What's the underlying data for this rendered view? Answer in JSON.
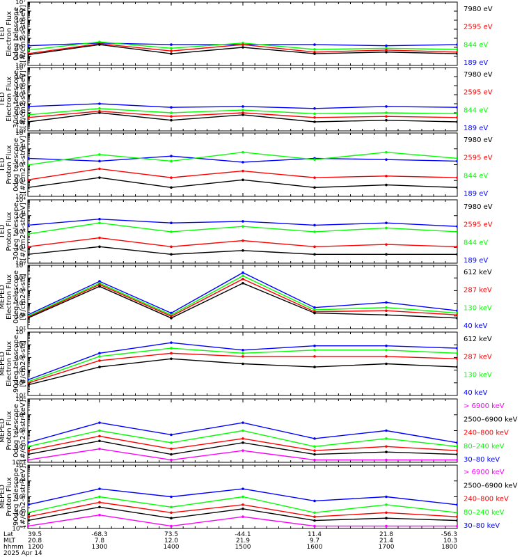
{
  "figure": {
    "date_label": "2025 Apr 14",
    "footer_rows": [
      {
        "label": "Lat",
        "values": [
          "39.5",
          "-68.3",
          "73.5",
          "-44.1",
          "11.4",
          "21.8",
          "-56.3"
        ]
      },
      {
        "label": "MLT",
        "values": [
          "20.8",
          "7.8",
          "12.0",
          "21.9",
          "9.7",
          "21.4",
          "10.3"
        ]
      },
      {
        "label": "hhmm",
        "values": [
          "1200",
          "1300",
          "1400",
          "1500",
          "1600",
          "1700",
          "1800"
        ]
      }
    ]
  },
  "colors": {
    "black": "#000000",
    "blue": "#0000ff",
    "red": "#ff0000",
    "green": "#00ff00",
    "magenta": "#ff00ff"
  },
  "chart_data": [
    {
      "type": "line",
      "ylabel": [
        "TED",
        "Electron Flux",
        "0deg telescope",
        "[#/cm2-s-str-eV]"
      ],
      "y_scale": "log",
      "ylim": [
        1,
        10000000
      ],
      "ytick_labels": [
        "10⁰",
        "10¹",
        "10²",
        "10³",
        "10⁴",
        "10⁵",
        "10⁶",
        "10⁷"
      ],
      "x": [
        "1200",
        "1300",
        "1400",
        "1500",
        "1600",
        "1700",
        "1800"
      ],
      "legend": [
        {
          "name": "7980 eV",
          "color": "black"
        },
        {
          "name": "2595 eV",
          "color": "red"
        },
        {
          "name": "844 eV",
          "color": "green"
        },
        {
          "name": "189 eV",
          "color": "blue"
        }
      ],
      "series": [
        {
          "name": "189 eV",
          "color": "blue",
          "values": [
            150,
            300,
            200,
            200,
            200,
            150,
            200
          ]
        },
        {
          "name": "844 eV",
          "color": "green",
          "values": [
            50,
            400,
            80,
            300,
            60,
            80,
            60
          ]
        },
        {
          "name": "2595 eV",
          "color": "red",
          "values": [
            20,
            250,
            40,
            200,
            30,
            50,
            30
          ]
        },
        {
          "name": "7980 eV",
          "color": "black",
          "values": [
            15,
            200,
            20,
            100,
            20,
            30,
            20
          ]
        }
      ]
    },
    {
      "type": "line",
      "ylabel": [
        "TED",
        "Electron Flux",
        "30deg telescope",
        "[#/cm2-s-str-eV]"
      ],
      "y_scale": "log",
      "ylim": [
        1,
        10000000
      ],
      "ytick_labels": [
        "10⁰",
        "10¹",
        "10²",
        "10³",
        "10⁴",
        "10⁵",
        "10⁶",
        "10⁷"
      ],
      "x": [
        "1200",
        "1300",
        "1400",
        "1500",
        "1600",
        "1700",
        "1800"
      ],
      "legend": [
        {
          "name": "7980 eV",
          "color": "black"
        },
        {
          "name": "2595 eV",
          "color": "red"
        },
        {
          "name": "844 eV",
          "color": "green"
        },
        {
          "name": "189 eV",
          "color": "blue"
        }
      ],
      "series": [
        {
          "name": "189 eV",
          "color": "blue",
          "values": [
            500,
            1000,
            400,
            500,
            300,
            500,
            400
          ]
        },
        {
          "name": "844 eV",
          "color": "green",
          "values": [
            60,
            300,
            100,
            200,
            80,
            100,
            80
          ]
        },
        {
          "name": "2595 eV",
          "color": "red",
          "values": [
            30,
            150,
            40,
            100,
            30,
            40,
            30
          ]
        },
        {
          "name": "7980 eV",
          "color": "black",
          "values": [
            10,
            100,
            15,
            60,
            10,
            15,
            10
          ]
        }
      ]
    },
    {
      "type": "line",
      "ylabel": [
        "TED",
        "Proton Flux",
        "0deg telescope",
        "[#/cm2-s-str-eV]"
      ],
      "y_scale": "log",
      "ylim": [
        1,
        100000
      ],
      "ytick_labels": [
        "10⁰",
        "10¹",
        "10²",
        "10³",
        "10⁴"
      ],
      "x": [
        "1200",
        "1300",
        "1400",
        "1500",
        "1600",
        "1700",
        "1800"
      ],
      "legend": [
        {
          "name": "7980 eV",
          "color": "black"
        },
        {
          "name": "2595 eV",
          "color": "red"
        },
        {
          "name": "844 eV",
          "color": "green"
        },
        {
          "name": "189 eV",
          "color": "blue"
        }
      ],
      "series": [
        {
          "name": "189 eV",
          "color": "blue",
          "values": [
            1000,
            600,
            1500,
            500,
            1000,
            800,
            600
          ]
        },
        {
          "name": "844 eV",
          "color": "green",
          "values": [
            300,
            2000,
            600,
            3000,
            800,
            3000,
            1000
          ]
        },
        {
          "name": "2595 eV",
          "color": "red",
          "values": [
            20,
            150,
            30,
            100,
            30,
            40,
            30
          ]
        },
        {
          "name": "7980 eV",
          "color": "black",
          "values": [
            5,
            30,
            5,
            20,
            5,
            8,
            5
          ]
        }
      ]
    },
    {
      "type": "line",
      "ylabel": [
        "TED",
        "Proton Flux",
        "30deg telescope",
        "[#/cm2-s-str-eV]"
      ],
      "y_scale": "log",
      "ylim": [
        1,
        100000
      ],
      "ytick_labels": [
        "10⁰",
        "10¹",
        "10²",
        "10³",
        "10⁴"
      ],
      "x": [
        "1200",
        "1300",
        "1400",
        "1500",
        "1600",
        "1700",
        "1800"
      ],
      "legend": [
        {
          "name": "7980 eV",
          "color": "black"
        },
        {
          "name": "2595 eV",
          "color": "red"
        },
        {
          "name": "844 eV",
          "color": "green"
        },
        {
          "name": "189 eV",
          "color": "blue"
        }
      ],
      "series": [
        {
          "name": "189 eV",
          "color": "blue",
          "values": [
            1000,
            3000,
            1500,
            2000,
            1000,
            1500,
            800
          ]
        },
        {
          "name": "844 eV",
          "color": "green",
          "values": [
            200,
            1500,
            300,
            800,
            300,
            600,
            300
          ]
        },
        {
          "name": "2595 eV",
          "color": "red",
          "values": [
            20,
            100,
            20,
            60,
            20,
            30,
            20
          ]
        },
        {
          "name": "7980 eV",
          "color": "black",
          "values": [
            5,
            20,
            5,
            10,
            5,
            5,
            5
          ]
        }
      ]
    },
    {
      "type": "line",
      "ylabel": [
        "MEPED",
        "Electron Flux",
        "0deg telescope",
        "[#/cm2-s-str]"
      ],
      "y_scale": "log",
      "ylim": [
        10,
        10000000
      ],
      "ytick_labels": [
        "10²",
        "10³",
        "10⁴",
        "10⁵",
        "10⁶",
        "10⁷"
      ],
      "x": [
        "1200",
        "1300",
        "1400",
        "1500",
        "1600",
        "1700",
        "1800"
      ],
      "legend": [
        {
          "name": "612 keV",
          "color": "black"
        },
        {
          "name": "287 keV",
          "color": "red"
        },
        {
          "name": "130 keV",
          "color": "green"
        },
        {
          "name": "40 keV",
          "color": "blue"
        }
      ],
      "series": [
        {
          "name": "40 keV",
          "color": "blue",
          "values": [
            200,
            300000,
            300,
            2000000,
            1000,
            3000,
            500
          ]
        },
        {
          "name": "130 keV",
          "color": "green",
          "values": [
            150,
            200000,
            200,
            1000000,
            600,
            1000,
            300
          ]
        },
        {
          "name": "287 keV",
          "color": "red",
          "values": [
            120,
            150000,
            150,
            500000,
            400,
            500,
            200
          ]
        },
        {
          "name": "612 keV",
          "color": "black",
          "values": [
            100,
            100000,
            100,
            200000,
            300,
            200,
            100
          ]
        }
      ]
    },
    {
      "type": "line",
      "ylabel": [
        "MEPED",
        "Electron Flux",
        "90deg telescope",
        "[#/cm2-s-str]"
      ],
      "y_scale": "log",
      "ylim": [
        10,
        10000000
      ],
      "ytick_labels": [
        "10²",
        "10³",
        "10⁴",
        "10⁵",
        "10⁶",
        "10⁷"
      ],
      "x": [
        "1200",
        "1300",
        "1400",
        "1500",
        "1600",
        "1700",
        "1800"
      ],
      "legend": [
        {
          "name": "612 keV",
          "color": "black"
        },
        {
          "name": "287 keV",
          "color": "red"
        },
        {
          "name": "130 keV",
          "color": "green"
        },
        {
          "name": "40 keV",
          "color": "blue"
        }
      ],
      "series": [
        {
          "name": "40 keV",
          "color": "blue",
          "values": [
            300,
            100000,
            1000000,
            200000,
            500000,
            500000,
            300000
          ]
        },
        {
          "name": "130 keV",
          "color": "green",
          "values": [
            200,
            50000,
            300000,
            100000,
            200000,
            200000,
            100000
          ]
        },
        {
          "name": "287 keV",
          "color": "red",
          "values": [
            150,
            20000,
            100000,
            50000,
            50000,
            50000,
            30000
          ]
        },
        {
          "name": "612 keV",
          "color": "black",
          "values": [
            100,
            5000,
            30000,
            10000,
            5000,
            10000,
            5000
          ]
        }
      ]
    },
    {
      "type": "line",
      "ylabel": [
        "MEPED",
        "Proton Flux",
        "0deg telescope",
        "[#/cm2-s-str-keV]"
      ],
      "y_scale": "log",
      "ylim": [
        0.01,
        1000000
      ],
      "ytick_labels": [
        "10⁻²",
        "10⁰",
        "10²",
        "10⁴",
        "10⁶"
      ],
      "x": [
        "1200",
        "1300",
        "1400",
        "1500",
        "1600",
        "1700",
        "1800"
      ],
      "legend": [
        {
          "name": "> 6900 keV",
          "color": "magenta"
        },
        {
          "name": "2500–6900 keV",
          "color": "black"
        },
        {
          "name": "240–800 keV",
          "color": "red"
        },
        {
          "name": "80–240 keV",
          "color": "green"
        },
        {
          "name": "30–80 keV",
          "color": "blue"
        }
      ],
      "series": [
        {
          "name": "30-80 keV",
          "color": "blue",
          "values": [
            3,
            1000,
            30,
            1000,
            10,
            100,
            3
          ]
        },
        {
          "name": "80-240 keV",
          "color": "green",
          "values": [
            1,
            100,
            3,
            100,
            1,
            10,
            1
          ]
        },
        {
          "name": "240-800 keV",
          "color": "red",
          "values": [
            0.3,
            20,
            0.5,
            10,
            0.3,
            1,
            0.3
          ]
        },
        {
          "name": "2500-6900 keV",
          "color": "black",
          "values": [
            0.1,
            5,
            0.1,
            3,
            0.1,
            0.2,
            0.1
          ]
        },
        {
          "name": "> 6900 keV",
          "color": "magenta",
          "values": [
            0.02,
            0.5,
            0.02,
            0.3,
            0.02,
            0.02,
            0.02
          ]
        }
      ]
    },
    {
      "type": "line",
      "ylabel": [
        "MEPED",
        "Proton Flux",
        "90deg telescope",
        "[#/cm2-s-str-keV]"
      ],
      "y_scale": "log",
      "ylim": [
        0.01,
        1000000
      ],
      "ytick_labels": [
        "10⁻²",
        "10⁰",
        "10²",
        "10⁴",
        "10⁶"
      ],
      "x": [
        "1200",
        "1300",
        "1400",
        "1500",
        "1600",
        "1700",
        "1800"
      ],
      "legend": [
        {
          "name": "> 6900 keV",
          "color": "magenta"
        },
        {
          "name": "2500–6900 keV",
          "color": "black"
        },
        {
          "name": "240–800 keV",
          "color": "red"
        },
        {
          "name": "80–240 keV",
          "color": "green"
        },
        {
          "name": "30–80 keV",
          "color": "blue"
        }
      ],
      "series": [
        {
          "name": "30-80 keV",
          "color": "blue",
          "values": [
            10,
            1000,
            100,
            1000,
            30,
            100,
            10
          ]
        },
        {
          "name": "80-240 keV",
          "color": "green",
          "values": [
            1,
            100,
            5,
            100,
            1,
            10,
            1
          ]
        },
        {
          "name": "240-800 keV",
          "color": "red",
          "values": [
            0.3,
            20,
            1,
            10,
            0.3,
            1,
            0.3
          ]
        },
        {
          "name": "2500-6900 keV",
          "color": "black",
          "values": [
            0.1,
            5,
            0.2,
            3,
            0.1,
            0.2,
            0.1
          ]
        },
        {
          "name": "> 6900 keV",
          "color": "magenta",
          "values": [
            0.02,
            0.5,
            0.02,
            0.3,
            0.02,
            0.02,
            0.02
          ]
        }
      ]
    }
  ]
}
